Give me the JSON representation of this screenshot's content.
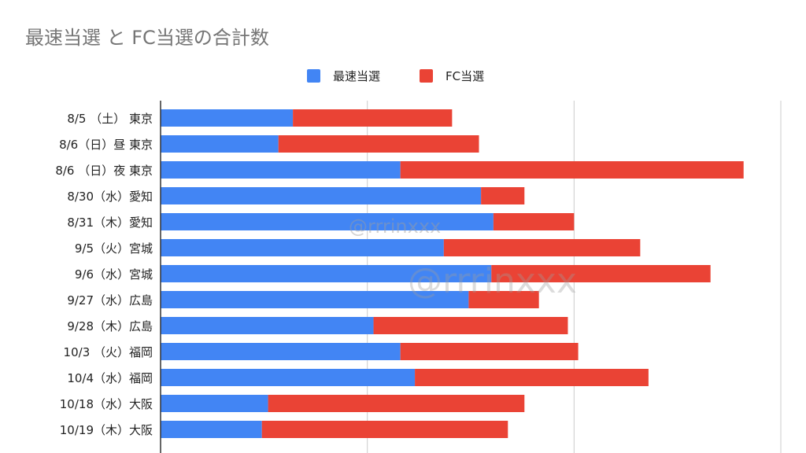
{
  "chart_data": {
    "type": "bar",
    "orientation": "horizontal",
    "stacked": true,
    "title": "最速当選 と FC当選の合計数",
    "legend_position": "top",
    "categories": [
      "8/5 （土） 東京",
      "8/6（日）昼 東京",
      "8/6 （日）夜 東京",
      "8/30（水）愛知",
      "8/31（木）愛知",
      "9/5（火）宮城",
      "9/6（水）宮城",
      "9/27（水）広島",
      "9/28（木）広島",
      "10/3 （火）福岡",
      "10/4（水）福岡",
      "10/18（水）大阪",
      "10/19（木）大阪"
    ],
    "series": [
      {
        "name": "最速当選",
        "color": "#4285f4",
        "values": [
          64,
          57,
          116,
          155,
          161,
          137,
          160,
          149,
          103,
          116,
          123,
          52,
          49
        ]
      },
      {
        "name": "FC当選",
        "color": "#ea4335",
        "values": [
          77,
          97,
          166,
          21,
          39,
          95,
          106,
          34,
          94,
          86,
          113,
          124,
          119
        ]
      }
    ],
    "xlim": [
      0,
      300
    ],
    "grid": true,
    "axis_tick_labels_shown": false
  },
  "watermarks": [
    "@rrrinxxx",
    "@rrrinxxx"
  ]
}
